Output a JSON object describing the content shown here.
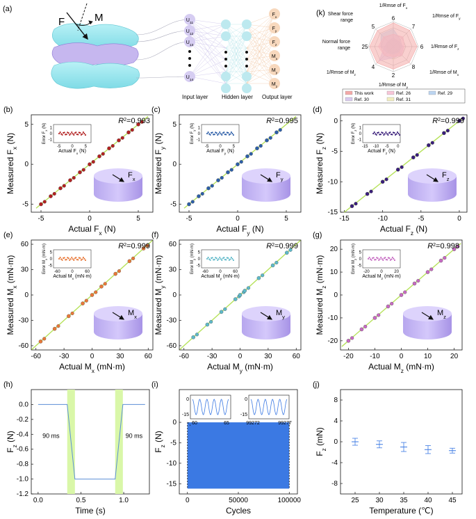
{
  "figure": {
    "panel_a": {
      "label": "(a)",
      "force_label": "F",
      "moment_label": "M",
      "input_nodes": [
        "U11",
        "U12",
        "U13",
        "U14"
      ],
      "output_nodes": [
        "Fx",
        "Fy",
        "Fz",
        "Mx",
        "My",
        "Mz"
      ],
      "input_caption": "Input layer",
      "hidden_caption": "Hidden layer",
      "output_caption": "Output layer"
    },
    "panel_k": {
      "label": "(k)",
      "axes": [
        "1/Rmse of Fx",
        "1/Rmse of Fy",
        "1/Rmse of Fz",
        "1/Rmse of Mx",
        "1/Rmse of My",
        "1/Rmse of Mz",
        "Normal force range",
        "Shear force range"
      ],
      "ticks": [
        "6",
        "7",
        "6",
        "8",
        "2",
        "4",
        "25",
        "5"
      ],
      "legend": [
        "This work",
        "Ref. 26",
        "Ref. 29",
        "Ref. 30",
        "Ref. 31"
      ],
      "colors": [
        "#f4a9a8",
        "#f7c6d8",
        "#bcd5f1",
        "#d8c9ee",
        "#f2eec0"
      ],
      "values": [
        [
          0.95,
          0.92,
          0.95,
          0.9,
          0.9,
          0.92,
          0.95,
          0.9
        ],
        [
          0.5,
          0.55,
          0.45,
          0.5,
          0.4,
          0.5,
          0.6,
          0.55
        ],
        [
          0.7,
          0.4,
          0.35,
          0.3,
          0.3,
          0.35,
          0.5,
          0.7
        ],
        [
          0.35,
          0.3,
          0.4,
          0.45,
          0.45,
          0.8,
          0.35,
          0.3
        ],
        [
          0.3,
          0.35,
          0.3,
          0.35,
          0.5,
          0.3,
          0.3,
          0.3
        ]
      ]
    },
    "chart_data": [
      {
        "id": "b",
        "label": "(b)",
        "type": "scatter",
        "r2": "0.993",
        "xlabel": "Actual F",
        "xsub": "x",
        "xunit": " (N)",
        "ylabel": "Measured F",
        "ysub": "x",
        "yunit": " (N)",
        "xlim": [
          -6,
          6.5
        ],
        "ylim": [
          -6,
          6.2
        ],
        "xticks": [
          -5,
          0,
          5
        ],
        "yticks": [
          -5,
          0,
          5
        ],
        "dot": "#b22222",
        "icon": "Fx",
        "inset": {
          "xlabel": "Actual F",
          "xsub": "x",
          "xunit": " (N)",
          "ylabel": "Error F",
          "ysub": "x",
          "yunit": " (N)",
          "xticks": [
            -5,
            0,
            5
          ],
          "yticks": [
            -1,
            0,
            1
          ],
          "xlim": [
            -7,
            7
          ],
          "ylim": [
            -1.5,
            1.5
          ]
        },
        "x": [
          -5,
          -4,
          -3,
          -2,
          -1,
          0,
          1,
          2,
          3,
          4,
          5
        ],
        "y": [
          -5,
          -4,
          -3,
          -2,
          -1,
          0,
          1,
          2,
          3,
          4,
          5
        ]
      },
      {
        "id": "c",
        "label": "(c)",
        "type": "scatter",
        "r2": "0.995",
        "xlabel": "Actual F",
        "xsub": "y",
        "xunit": " (N)",
        "ylabel": "Measured F",
        "ysub": "y",
        "yunit": " (N)",
        "xlim": [
          -6,
          6.5
        ],
        "ylim": [
          -6,
          6.2
        ],
        "xticks": [
          -5,
          0,
          5
        ],
        "yticks": [
          -5,
          0,
          5
        ],
        "dot": "#2e5fa8",
        "icon": "Fy",
        "inset": {
          "xlabel": "Actual F",
          "xsub": "y",
          "xunit": " (N)",
          "ylabel": "Error F",
          "ysub": "y",
          "yunit": " (N)",
          "xticks": [
            -5,
            0,
            5
          ],
          "yticks": [
            -1,
            0,
            1
          ],
          "xlim": [
            -7,
            7
          ],
          "ylim": [
            -1.5,
            1.5
          ]
        },
        "x": [
          -5,
          -4,
          -3,
          -2,
          -1,
          0,
          1,
          2,
          3,
          4
        ],
        "y": [
          -5,
          -4,
          -3,
          -2,
          -1,
          0,
          1,
          2,
          3,
          4
        ]
      },
      {
        "id": "d",
        "label": "(d)",
        "type": "scatter",
        "r2": "0.999",
        "xlabel": "Actual F",
        "xsub": "z",
        "xunit": " (N)",
        "ylabel": "Measured F",
        "ysub": "z",
        "yunit": " (N)",
        "xlim": [
          -15.5,
          1
        ],
        "ylim": [
          -15,
          1
        ],
        "xticks": [
          -15,
          -10,
          -5,
          0
        ],
        "yticks": [
          -15,
          -10,
          -5,
          0
        ],
        "dot": "#3a1f7a",
        "icon": "Fz",
        "inset": {
          "xlabel": "Actual F",
          "xsub": "z",
          "xunit": " (N)",
          "ylabel": "Error F",
          "ysub": "z",
          "yunit": " (N)",
          "xticks": [
            -15,
            -10,
            -5,
            0
          ],
          "yticks": [
            -1,
            0,
            1
          ],
          "xlim": [
            -16,
            1
          ],
          "ylim": [
            -1.5,
            1.5
          ]
        },
        "x": [
          -14,
          -12,
          -10,
          -8,
          -6,
          -4,
          -2,
          0
        ],
        "y": [
          -14,
          -12,
          -10,
          -8,
          -6,
          -4,
          -2,
          0
        ]
      },
      {
        "id": "e",
        "label": "(e)",
        "type": "scatter",
        "r2": "0.999",
        "xlabel": "Actual M",
        "xsub": "x",
        "xunit": " (mN·m)",
        "ylabel": "Measured M",
        "ysub": "x",
        "yunit": " (mN·m)",
        "xlim": [
          -65,
          65
        ],
        "ylim": [
          -65,
          65
        ],
        "xticks": [
          -60,
          -30,
          0,
          30,
          60
        ],
        "yticks": [
          -60,
          -30,
          0,
          30,
          60
        ],
        "dot": "#e8793a",
        "icon": "Mx",
        "inset": {
          "xlabel": "Actual M",
          "xsub": "x",
          "xunit": " (mN·m)",
          "ylabel": "Error M",
          "ysub": "x",
          "yunit": " (mN·m)",
          "xticks": [
            -60,
            0,
            60
          ],
          "yticks": [
            -5,
            0,
            5
          ],
          "xlim": [
            -75,
            75
          ],
          "ylim": [
            -7,
            7
          ]
        },
        "x": [
          -55,
          -40,
          -25,
          -10,
          0,
          10,
          25,
          40,
          55
        ],
        "y": [
          -55,
          -40,
          -25,
          -10,
          0,
          10,
          25,
          40,
          55
        ]
      },
      {
        "id": "f",
        "label": "(f)",
        "type": "scatter",
        "r2": "0.999",
        "xlabel": "Actual M",
        "xsub": "y",
        "xunit": " (mN·m)",
        "ylabel": "Measured M",
        "ysub": "y",
        "yunit": " (mN·m)",
        "xlim": [
          -65,
          65
        ],
        "ylim": [
          -65,
          65
        ],
        "xticks": [
          -60,
          -30,
          0,
          30,
          60
        ],
        "yticks": [
          -60,
          -30,
          0,
          30,
          60
        ],
        "dot": "#5fb9c9",
        "icon": "My",
        "inset": {
          "xlabel": "Actual M",
          "xsub": "y",
          "xunit": " (mN·m)",
          "ylabel": "Error M",
          "ysub": "y",
          "yunit": " (mN·m)",
          "xticks": [
            -60,
            0,
            60
          ],
          "yticks": [
            -5,
            0,
            5
          ],
          "xlim": [
            -75,
            75
          ],
          "ylim": [
            -7,
            7
          ]
        },
        "x": [
          -50,
          -35,
          -20,
          -5,
          0,
          5,
          20,
          35,
          50
        ],
        "y": [
          -50,
          -35,
          -20,
          -5,
          0,
          5,
          20,
          35,
          50
        ]
      },
      {
        "id": "g",
        "label": "(g)",
        "type": "scatter",
        "r2": "0.998",
        "xlabel": "Actual M",
        "xsub": "z",
        "xunit": " (mN·m)",
        "ylabel": "Measured M",
        "ysub": "z",
        "yunit": " (mN·m)",
        "xlim": [
          -23,
          23
        ],
        "ylim": [
          -24,
          24
        ],
        "xticks": [
          -20,
          -10,
          0,
          10,
          20
        ],
        "yticks": [
          -20,
          -10,
          0,
          10,
          20
        ],
        "dot": "#c66bc2",
        "icon": "Mz",
        "inset": {
          "xlabel": "Actual M",
          "xsub": "z",
          "xunit": " (mN·m)",
          "ylabel": "Error M",
          "ysub": "z",
          "yunit": " (mN·m)",
          "xticks": [
            -20,
            0,
            20
          ],
          "yticks": [
            -5,
            0,
            5
          ],
          "xlim": [
            -25,
            25
          ],
          "ylim": [
            -7,
            7
          ]
        },
        "x": [
          -20,
          -15,
          -10,
          -5,
          0,
          5,
          10,
          15,
          20
        ],
        "y": [
          -20,
          -15,
          -10,
          -5,
          0,
          5,
          10,
          15,
          20
        ]
      },
      {
        "id": "h",
        "label": "(h)",
        "type": "line",
        "xlabel": "Time (s)",
        "ylabel": "F",
        "ysub": "z",
        "yunit": " (N)",
        "xlim": [
          -0.08,
          1.3
        ],
        "ylim": [
          -1.2,
          0.2
        ],
        "xticks": [
          0.0,
          0.5,
          1.0
        ],
        "xtickLabels": [
          "0.0",
          "0.5",
          "1.0"
        ],
        "yticks": [
          0.0,
          -0.2,
          -0.4,
          -0.6,
          -0.8,
          -1.0,
          -1.2
        ],
        "ytickLabels": [
          "0.0",
          "-0.2",
          "-0.4",
          "-0.6",
          "-0.8",
          "-1.0",
          "-1.2"
        ],
        "x": [
          0,
          0.34,
          0.43,
          0.9,
          0.99,
          1.25
        ],
        "y": [
          0,
          0,
          -1.0,
          -1.0,
          0,
          0
        ],
        "bands": [
          [
            0.34,
            0.43
          ],
          [
            0.9,
            0.99
          ]
        ],
        "annotations": [
          "90 ms",
          "90 ms"
        ]
      },
      {
        "id": "i",
        "label": "(i)",
        "type": "area",
        "xlabel": "Cycles",
        "ylabel": "F",
        "ysub": "z",
        "yunit": " (N)",
        "xlim": [
          -8000,
          108000
        ],
        "ylim": [
          -17.5,
          8
        ],
        "xticks": [
          0,
          50000,
          100000
        ],
        "xtickLabels": [
          "0",
          "50000",
          "100000"
        ],
        "yticks": [
          0,
          -5,
          -10,
          -15
        ],
        "ytickLabels": [
          "0",
          "-5",
          "-10",
          "-15"
        ],
        "band": [
          -16.2,
          0
        ],
        "insets": [
          {
            "xticks": [
              "60",
              "65"
            ],
            "yticks": [
              "0",
              "-15"
            ],
            "cycles": 5
          },
          {
            "xticks": [
              "99272",
              "99277"
            ],
            "yticks": [
              "0",
              "-15"
            ],
            "cycles": 5
          }
        ]
      },
      {
        "id": "j",
        "label": "(j)",
        "type": "scatter",
        "xlabel": "Temperature (℃)",
        "ylabel": "F",
        "ysub": "z",
        "yunit": " (mN)",
        "xlim": [
          22,
          47
        ],
        "ylim": [
          -10,
          10
        ],
        "xticks": [
          25,
          30,
          35,
          40,
          45
        ],
        "xtickLabels": [
          "25",
          "30",
          "35",
          "40",
          "45"
        ],
        "yticks": [
          8,
          4,
          0,
          -4,
          -8
        ],
        "ytickLabels": [
          "8",
          "4",
          "0",
          "-4",
          "-8"
        ],
        "x": [
          25,
          30,
          35,
          40,
          45
        ],
        "y": [
          0.0,
          -0.5,
          -1.0,
          -1.5,
          -1.7
        ],
        "err": [
          0.4,
          0.4,
          0.6,
          0.5,
          0.2
        ]
      }
    ]
  }
}
